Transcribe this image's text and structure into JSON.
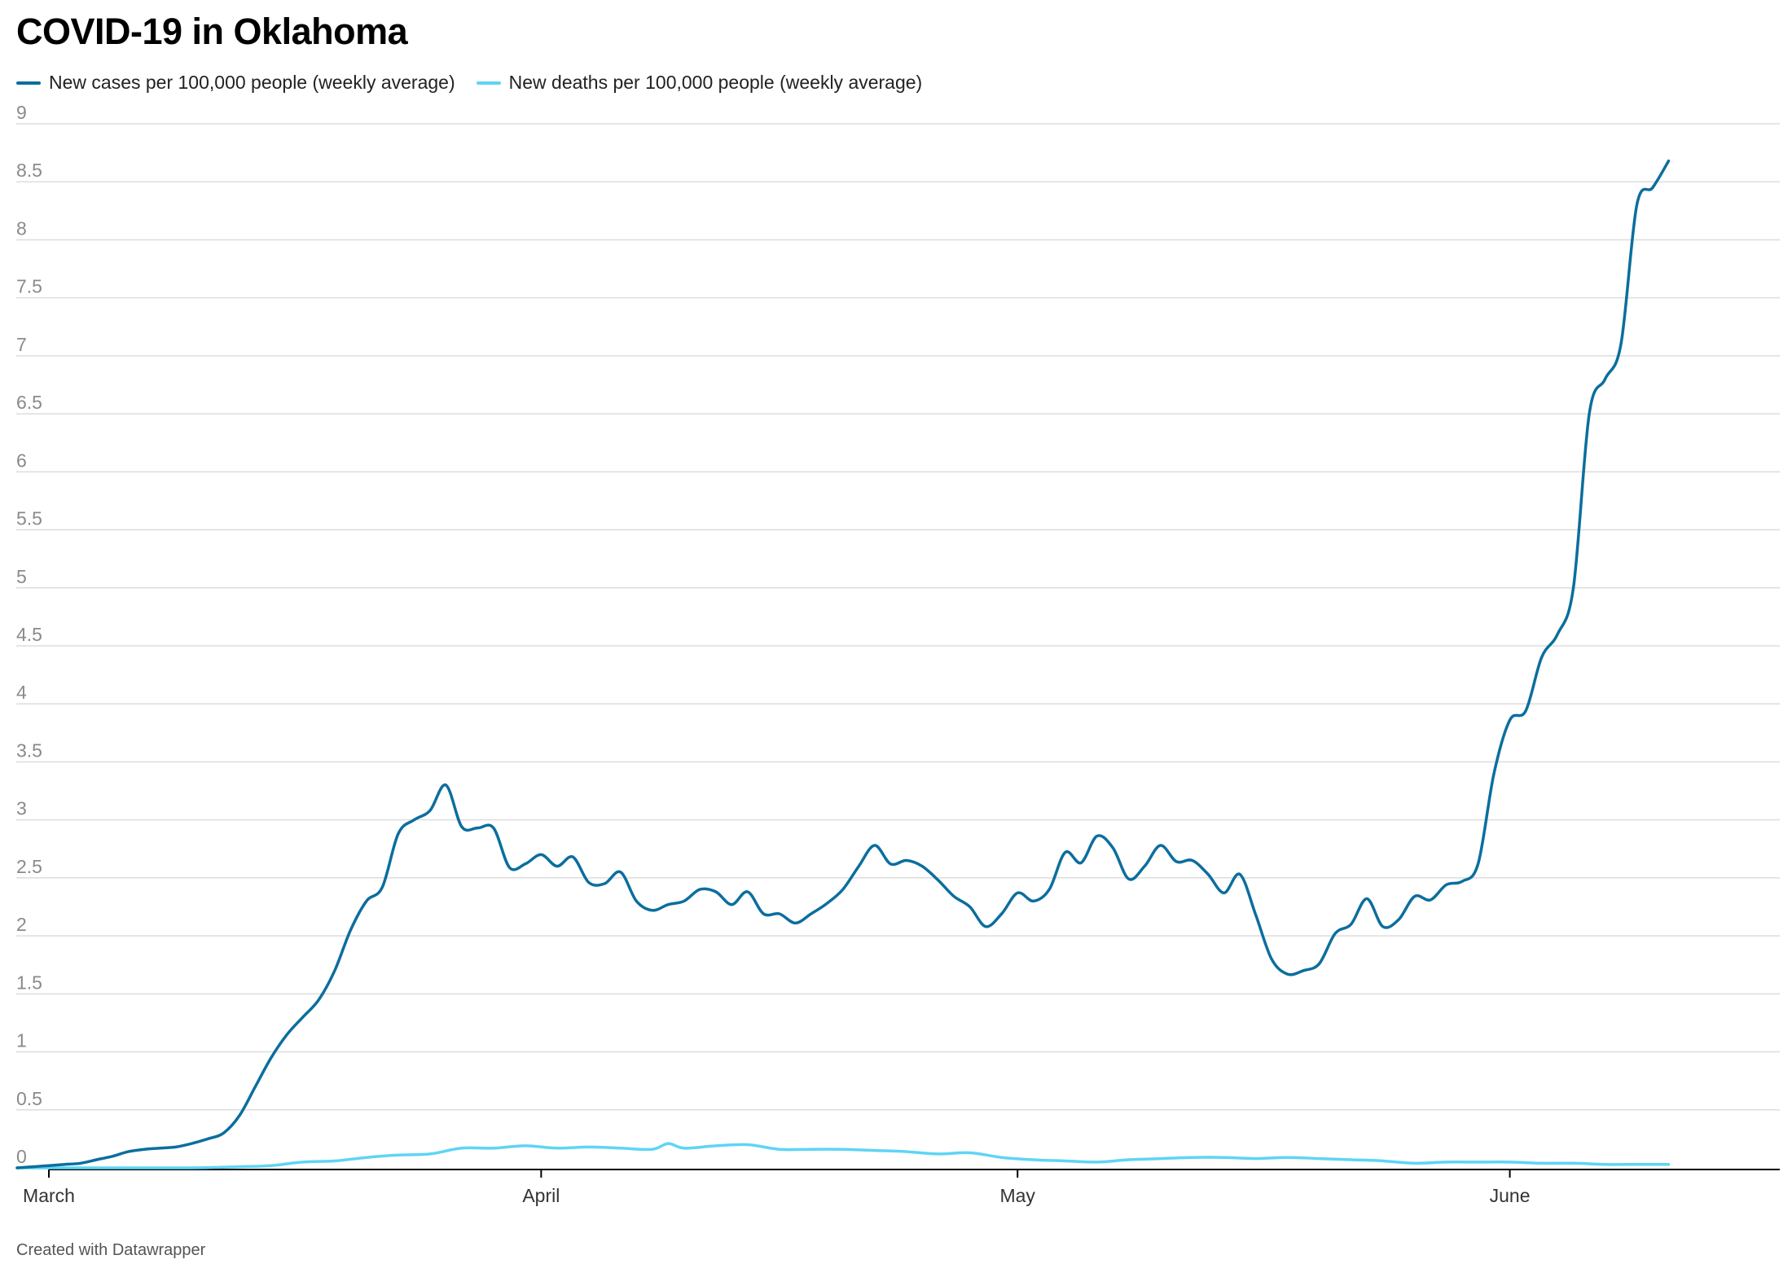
{
  "title": "COVID-19 in Oklahoma",
  "footer": "Created with Datawrapper",
  "colors": {
    "cases": "#0b6e9e",
    "deaths": "#5ed5f4",
    "grid": "#dddddd",
    "axis": "#000000"
  },
  "chart_data": {
    "type": "line",
    "title": "COVID-19 in Oklahoma",
    "xlabel": "",
    "ylabel": "",
    "ylim": [
      0,
      9
    ],
    "x_start": "2020-03-01",
    "x_end": "2020-06-18",
    "yticks": [
      "0",
      "0.5",
      "1",
      "1.5",
      "2",
      "2.5",
      "3",
      "3.5",
      "4",
      "4.5",
      "5",
      "5.5",
      "6",
      "6.5",
      "7",
      "7.5",
      "8",
      "8.5",
      "9"
    ],
    "xticks": [
      {
        "date": "2020-03-01",
        "label": "March"
      },
      {
        "date": "2020-04-01",
        "label": "April"
      },
      {
        "date": "2020-05-01",
        "label": "May"
      },
      {
        "date": "2020-06-01",
        "label": "June"
      }
    ],
    "grid": true,
    "legend": "top-left",
    "series": [
      {
        "name": "New cases per 100,000 people (weekly average)",
        "color": "#0b6e9e",
        "points": [
          [
            "2020-02-28",
            0.0
          ],
          [
            "2020-02-29",
            0.01
          ],
          [
            "2020-03-01",
            0.02
          ],
          [
            "2020-03-02",
            0.03
          ],
          [
            "2020-03-03",
            0.04
          ],
          [
            "2020-03-04",
            0.07
          ],
          [
            "2020-03-05",
            0.1
          ],
          [
            "2020-03-06",
            0.14
          ],
          [
            "2020-03-07",
            0.16
          ],
          [
            "2020-03-08",
            0.17
          ],
          [
            "2020-03-09",
            0.18
          ],
          [
            "2020-03-10",
            0.21
          ],
          [
            "2020-03-11",
            0.25
          ],
          [
            "2020-03-12",
            0.3
          ],
          [
            "2020-03-13",
            0.45
          ],
          [
            "2020-03-14",
            0.7
          ],
          [
            "2020-03-15",
            0.95
          ],
          [
            "2020-03-16",
            1.15
          ],
          [
            "2020-03-17",
            1.3
          ],
          [
            "2020-03-18",
            1.45
          ],
          [
            "2020-03-19",
            1.7
          ],
          [
            "2020-03-20",
            2.05
          ],
          [
            "2020-03-21",
            2.3
          ],
          [
            "2020-03-22",
            2.42
          ],
          [
            "2020-03-23",
            2.88
          ],
          [
            "2020-03-24",
            3.0
          ],
          [
            "2020-03-25",
            3.08
          ],
          [
            "2020-03-26",
            3.3
          ],
          [
            "2020-03-27",
            2.94
          ],
          [
            "2020-03-28",
            2.93
          ],
          [
            "2020-03-29",
            2.93
          ],
          [
            "2020-03-30",
            2.59
          ],
          [
            "2020-03-31",
            2.62
          ],
          [
            "2020-04-01",
            2.7
          ],
          [
            "2020-04-02",
            2.6
          ],
          [
            "2020-04-03",
            2.68
          ],
          [
            "2020-04-04",
            2.46
          ],
          [
            "2020-04-05",
            2.45
          ],
          [
            "2020-04-06",
            2.55
          ],
          [
            "2020-04-07",
            2.3
          ],
          [
            "2020-04-08",
            2.22
          ],
          [
            "2020-04-09",
            2.27
          ],
          [
            "2020-04-10",
            2.3
          ],
          [
            "2020-04-11",
            2.4
          ],
          [
            "2020-04-12",
            2.38
          ],
          [
            "2020-04-13",
            2.27
          ],
          [
            "2020-04-14",
            2.38
          ],
          [
            "2020-04-15",
            2.19
          ],
          [
            "2020-04-16",
            2.19
          ],
          [
            "2020-04-17",
            2.11
          ],
          [
            "2020-04-18",
            2.19
          ],
          [
            "2020-04-19",
            2.28
          ],
          [
            "2020-04-20",
            2.4
          ],
          [
            "2020-04-21",
            2.6
          ],
          [
            "2020-04-22",
            2.78
          ],
          [
            "2020-04-23",
            2.62
          ],
          [
            "2020-04-24",
            2.65
          ],
          [
            "2020-04-25",
            2.6
          ],
          [
            "2020-04-26",
            2.48
          ],
          [
            "2020-04-27",
            2.34
          ],
          [
            "2020-04-28",
            2.25
          ],
          [
            "2020-04-29",
            2.08
          ],
          [
            "2020-04-30",
            2.19
          ],
          [
            "2020-05-01",
            2.37
          ],
          [
            "2020-05-02",
            2.3
          ],
          [
            "2020-05-03",
            2.4
          ],
          [
            "2020-05-04",
            2.72
          ],
          [
            "2020-05-05",
            2.63
          ],
          [
            "2020-05-06",
            2.86
          ],
          [
            "2020-05-07",
            2.76
          ],
          [
            "2020-05-08",
            2.49
          ],
          [
            "2020-05-09",
            2.6
          ],
          [
            "2020-05-10",
            2.78
          ],
          [
            "2020-05-11",
            2.64
          ],
          [
            "2020-05-12",
            2.65
          ],
          [
            "2020-05-13",
            2.53
          ],
          [
            "2020-05-14",
            2.37
          ],
          [
            "2020-05-15",
            2.53
          ],
          [
            "2020-05-16",
            2.18
          ],
          [
            "2020-05-17",
            1.8
          ],
          [
            "2020-05-18",
            1.67
          ],
          [
            "2020-05-19",
            1.7
          ],
          [
            "2020-05-20",
            1.76
          ],
          [
            "2020-05-21",
            2.02
          ],
          [
            "2020-05-22",
            2.1
          ],
          [
            "2020-05-23",
            2.32
          ],
          [
            "2020-05-24",
            2.08
          ],
          [
            "2020-05-25",
            2.14
          ],
          [
            "2020-05-26",
            2.34
          ],
          [
            "2020-05-27",
            2.31
          ],
          [
            "2020-05-28",
            2.44
          ],
          [
            "2020-05-29",
            2.47
          ],
          [
            "2020-05-30",
            2.62
          ],
          [
            "2020-05-31",
            3.4
          ],
          [
            "2020-06-01",
            3.86
          ],
          [
            "2020-06-02",
            3.94
          ],
          [
            "2020-06-03",
            4.4
          ],
          [
            "2020-06-04",
            4.6
          ],
          [
            "2020-06-05",
            5.0
          ],
          [
            "2020-06-06",
            6.5
          ],
          [
            "2020-06-07",
            6.8
          ],
          [
            "2020-06-08",
            7.1
          ],
          [
            "2020-06-09",
            8.3
          ],
          [
            "2020-06-10",
            8.45
          ],
          [
            "2020-06-11",
            8.68
          ]
        ]
      },
      {
        "name": "New deaths per 100,000 people (weekly average)",
        "color": "#5ed5f4",
        "points": [
          [
            "2020-02-28",
            0.0
          ],
          [
            "2020-03-05",
            0.0
          ],
          [
            "2020-03-10",
            0.0
          ],
          [
            "2020-03-13",
            0.01
          ],
          [
            "2020-03-15",
            0.02
          ],
          [
            "2020-03-17",
            0.05
          ],
          [
            "2020-03-19",
            0.06
          ],
          [
            "2020-03-21",
            0.09
          ],
          [
            "2020-03-23",
            0.11
          ],
          [
            "2020-03-25",
            0.12
          ],
          [
            "2020-03-27",
            0.17
          ],
          [
            "2020-03-29",
            0.17
          ],
          [
            "2020-03-31",
            0.19
          ],
          [
            "2020-04-02",
            0.17
          ],
          [
            "2020-04-04",
            0.18
          ],
          [
            "2020-04-06",
            0.17
          ],
          [
            "2020-04-08",
            0.16
          ],
          [
            "2020-04-09",
            0.21
          ],
          [
            "2020-04-10",
            0.17
          ],
          [
            "2020-04-12",
            0.19
          ],
          [
            "2020-04-14",
            0.2
          ],
          [
            "2020-04-16",
            0.16
          ],
          [
            "2020-04-18",
            0.16
          ],
          [
            "2020-04-20",
            0.16
          ],
          [
            "2020-04-22",
            0.15
          ],
          [
            "2020-04-24",
            0.14
          ],
          [
            "2020-04-26",
            0.12
          ],
          [
            "2020-04-28",
            0.13
          ],
          [
            "2020-04-30",
            0.09
          ],
          [
            "2020-05-02",
            0.07
          ],
          [
            "2020-05-04",
            0.06
          ],
          [
            "2020-05-06",
            0.05
          ],
          [
            "2020-05-08",
            0.07
          ],
          [
            "2020-05-10",
            0.08
          ],
          [
            "2020-05-12",
            0.09
          ],
          [
            "2020-05-14",
            0.09
          ],
          [
            "2020-05-16",
            0.08
          ],
          [
            "2020-05-18",
            0.09
          ],
          [
            "2020-05-20",
            0.08
          ],
          [
            "2020-05-22",
            0.07
          ],
          [
            "2020-05-24",
            0.06
          ],
          [
            "2020-05-26",
            0.04
          ],
          [
            "2020-05-28",
            0.05
          ],
          [
            "2020-05-30",
            0.05
          ],
          [
            "2020-06-01",
            0.05
          ],
          [
            "2020-06-03",
            0.04
          ],
          [
            "2020-06-05",
            0.04
          ],
          [
            "2020-06-07",
            0.03
          ],
          [
            "2020-06-09",
            0.03
          ],
          [
            "2020-06-11",
            0.03
          ]
        ]
      }
    ]
  }
}
